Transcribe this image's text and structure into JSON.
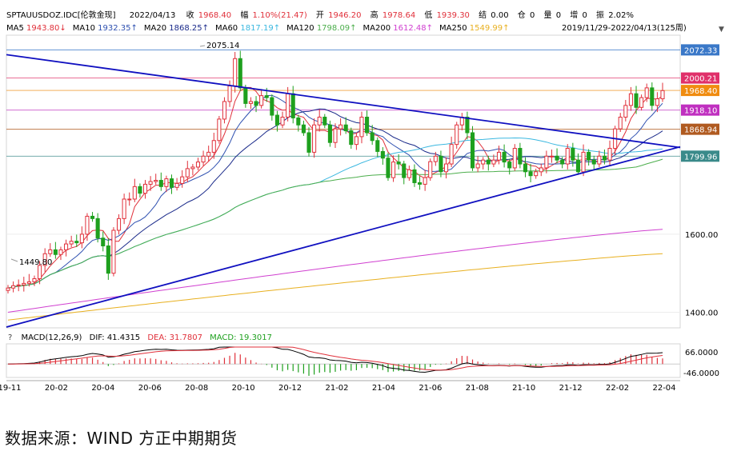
{
  "header": {
    "symbol": "SPTAUUSDOZ.IDC[伦敦金现]",
    "date": "2022/04/13",
    "close_label": "收",
    "close_value": "1968.40",
    "change_label": "幅",
    "change_value": "1.10%(21.47)",
    "open_label": "开",
    "open_value": "1946.20",
    "high_label": "高",
    "high_value": "1978.64",
    "low_label": "低",
    "low_value": "1939.30",
    "settle_label": "结",
    "settle_value": "0.00",
    "oi_label": "仓",
    "oi_value": "0",
    "vol_label": "量",
    "vol_value": "0",
    "inc_label": "增",
    "inc_value": "0",
    "amp_label": "振",
    "amp_value": "2.02%"
  },
  "ma_legend": [
    {
      "label": "MA5",
      "value": "1943.80↓",
      "color": "#e0303a"
    },
    {
      "label": "MA10",
      "value": "1932.35↑",
      "color": "#2e50b0"
    },
    {
      "label": "MA20",
      "value": "1868.25↑",
      "color": "#1a2a8a"
    },
    {
      "label": "MA60",
      "value": "1817.19↑",
      "color": "#3bb8e0"
    },
    {
      "label": "MA120",
      "value": "1798.09↑",
      "color": "#4cae4c"
    },
    {
      "label": "MA200",
      "value": "1612.48↑",
      "color": "#d040d0"
    },
    {
      "label": "MA250",
      "value": "1549.99↑",
      "color": "#e8b020"
    }
  ],
  "range_label": "2019/11/29-2022/04/13(125周)",
  "price_tags": [
    {
      "value": "2072.33",
      "color": "#3a78c8"
    },
    {
      "value": "2000.21",
      "color": "#e0306a"
    },
    {
      "value": "1968.40",
      "color": "#f08c10"
    },
    {
      "value": "1918.10",
      "color": "#c030c0"
    },
    {
      "value": "1868.94",
      "color": "#b05a20"
    },
    {
      "value": "1799.96",
      "color": "#3a8a8a"
    }
  ],
  "annotations": {
    "high": "2075.14",
    "low": "1449.80"
  },
  "macd_legend": {
    "question": "?",
    "label": "MACD(12,26,9)",
    "dif": "DIF: 41.4315",
    "dea": "DEA: 31.7807",
    "macd": "MACD: 19.3017"
  },
  "macd_axis": [
    "66.0000",
    "-46.0000"
  ],
  "source": "数据来源：WIND  方正中期期货",
  "chart_data": {
    "type": "candlestick",
    "period": "weekly",
    "title": "SPTAUUSDOZ.IDC[伦敦金现]",
    "y_axis_ticks": [
      1400,
      1600
    ],
    "ylim": [
      1360,
      2110
    ],
    "x_tick_labels": [
      "19-11",
      "20-02",
      "20-04",
      "20-06",
      "20-08",
      "20-10",
      "20-12",
      "21-02",
      "21-04",
      "21-06",
      "21-08",
      "21-10",
      "21-12",
      "22-02",
      "22-04"
    ],
    "last_candle": {
      "date": "2022/04/13",
      "open": 1946.2,
      "high": 1978.64,
      "low": 1939.3,
      "close": 1968.4
    },
    "moving_averages": {
      "MA5": 1943.8,
      "MA10": 1932.35,
      "MA20": 1868.25,
      "MA60": 1817.19,
      "MA120": 1798.09,
      "MA200": 1612.48,
      "MA250": 1549.99
    },
    "close_series": [
      1462,
      1468,
      1470,
      1474,
      1478,
      1486,
      1520,
      1550,
      1560,
      1548,
      1560,
      1575,
      1582,
      1578,
      1600,
      1646,
      1640,
      1590,
      1570,
      1500,
      1610,
      1640,
      1690,
      1690,
      1722,
      1705,
      1728,
      1735,
      1738,
      1722,
      1742,
      1720,
      1730,
      1747,
      1768,
      1772,
      1785,
      1800,
      1810,
      1840,
      1895,
      1940,
      1980,
      2050,
      1975,
      1935,
      1940,
      1930,
      1955,
      1950,
      1905,
      1880,
      1900,
      1960,
      1898,
      1880,
      1860,
      1810,
      1880,
      1900,
      1880,
      1835,
      1870,
      1880,
      1865,
      1830,
      1850,
      1900,
      1860,
      1840,
      1812,
      1795,
      1745,
      1785,
      1780,
      1745,
      1765,
      1732,
      1728,
      1745,
      1786,
      1800,
      1760,
      1780,
      1830,
      1880,
      1900,
      1860,
      1770,
      1780,
      1790,
      1780,
      1790,
      1810,
      1785,
      1770,
      1820,
      1780,
      1760,
      1750,
      1760,
      1770,
      1800,
      1800,
      1790,
      1780,
      1820,
      1790,
      1760,
      1810,
      1790,
      1780,
      1800,
      1790,
      1820,
      1870,
      1900,
      1930,
      1960,
      1925,
      1950,
      1975,
      1930,
      1947,
      1968
    ],
    "trendlines": [
      {
        "name": "upper",
        "from": {
          "x": "19-11",
          "y": 2060
        },
        "to": {
          "x": "22-04",
          "y": 1822
        }
      },
      {
        "name": "lower",
        "from": {
          "x": "19-11",
          "y": 1362
        },
        "to": {
          "x": "22-04",
          "y": 1824
        }
      }
    ],
    "horizontal_levels": [
      2072.33,
      2000.21,
      1968.4,
      1918.1,
      1868.94,
      1799.96
    ],
    "macd": {
      "dif": 41.4315,
      "dea": 31.7807,
      "macd": 19.3017,
      "ylim": [
        -46,
        66
      ]
    }
  }
}
